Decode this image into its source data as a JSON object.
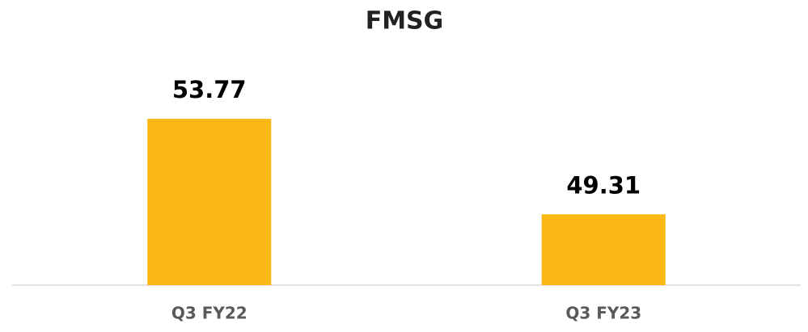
{
  "chart_data": {
    "type": "bar",
    "title": "FMSG",
    "categories": [
      "Q3 FY22",
      "Q3 FY23"
    ],
    "values": [
      53.77,
      49.31
    ],
    "color": "#fbb814",
    "ylim": [
      46,
      56
    ]
  }
}
